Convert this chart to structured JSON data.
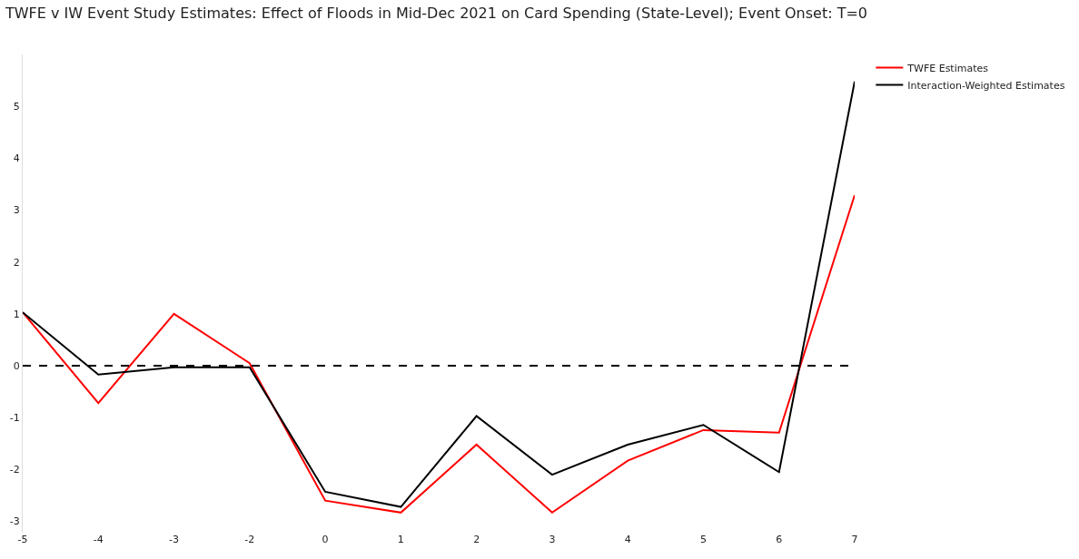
{
  "chart_data": {
    "type": "line",
    "title": "TWFE v IW Event Study Estimates: Effect of Floods in Mid-Dec 2021 on Card Spending (State-Level); Event Onset: T=0",
    "categories": [
      "-5",
      "-4",
      "-3",
      "-2",
      "0",
      "1",
      "2",
      "3",
      "4",
      "5",
      "6",
      "7"
    ],
    "series": [
      {
        "name": "TWFE Estimates",
        "color": "#ff0000",
        "values": [
          1.03,
          -0.72,
          1.0,
          0.05,
          -2.6,
          -2.83,
          -1.52,
          -2.83,
          -1.83,
          -1.24,
          -1.29,
          3.29
        ]
      },
      {
        "name": "Interaction-Weighted Estimates",
        "color": "#000000",
        "values": [
          1.03,
          -0.17,
          -0.03,
          -0.03,
          -2.43,
          -2.72,
          -0.97,
          -2.1,
          -1.52,
          -1.14,
          -2.05,
          5.48
        ]
      }
    ],
    "ylim": [
      -3.2,
      6
    ],
    "yticks": [
      -3,
      -2,
      -1,
      0,
      1,
      2,
      3,
      4,
      5
    ],
    "ref_lines": [
      {
        "axis": "y",
        "value": 0,
        "color": "#000000",
        "line_style": "dashed"
      }
    ],
    "grid": false,
    "legend": "top right",
    "line_style": "solid",
    "marker": "none"
  }
}
